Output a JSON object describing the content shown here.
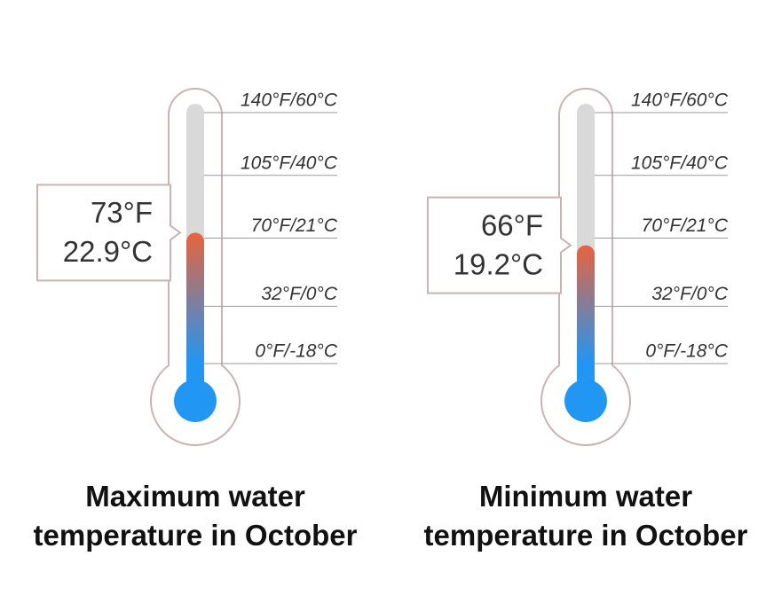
{
  "chart_data": [
    {
      "type": "thermometer",
      "title": "Maximum water temperature in October",
      "values": [
        73,
        22.9
      ],
      "value_labels": [
        "73°F",
        "22.9°C"
      ],
      "ylim": [
        0,
        140
      ],
      "yticks": [
        {
          "value": 0,
          "label": "0°F/-18°C"
        },
        {
          "value": 32,
          "label": "32°F/0°C"
        },
        {
          "value": 70,
          "label": "70°F/21°C"
        },
        {
          "value": 105,
          "label": "105°F/40°C"
        },
        {
          "value": 140,
          "label": "140°F/60°C"
        }
      ],
      "colors": [
        "#2196f3",
        "#e8643c"
      ]
    },
    {
      "type": "thermometer",
      "title": "Minimum water temperature in October",
      "values": [
        66,
        19.2
      ],
      "value_labels": [
        "66°F",
        "19.2°C"
      ],
      "ylim": [
        0,
        140
      ],
      "yticks": [
        {
          "value": 0,
          "label": "0°F/-18°C"
        },
        {
          "value": 32,
          "label": "32°F/0°C"
        },
        {
          "value": 70,
          "label": "70°F/21°C"
        },
        {
          "value": 105,
          "label": "105°F/40°C"
        },
        {
          "value": 140,
          "label": "140°F/60°C"
        }
      ],
      "colors": [
        "#2196f3",
        "#e8643c"
      ]
    }
  ]
}
